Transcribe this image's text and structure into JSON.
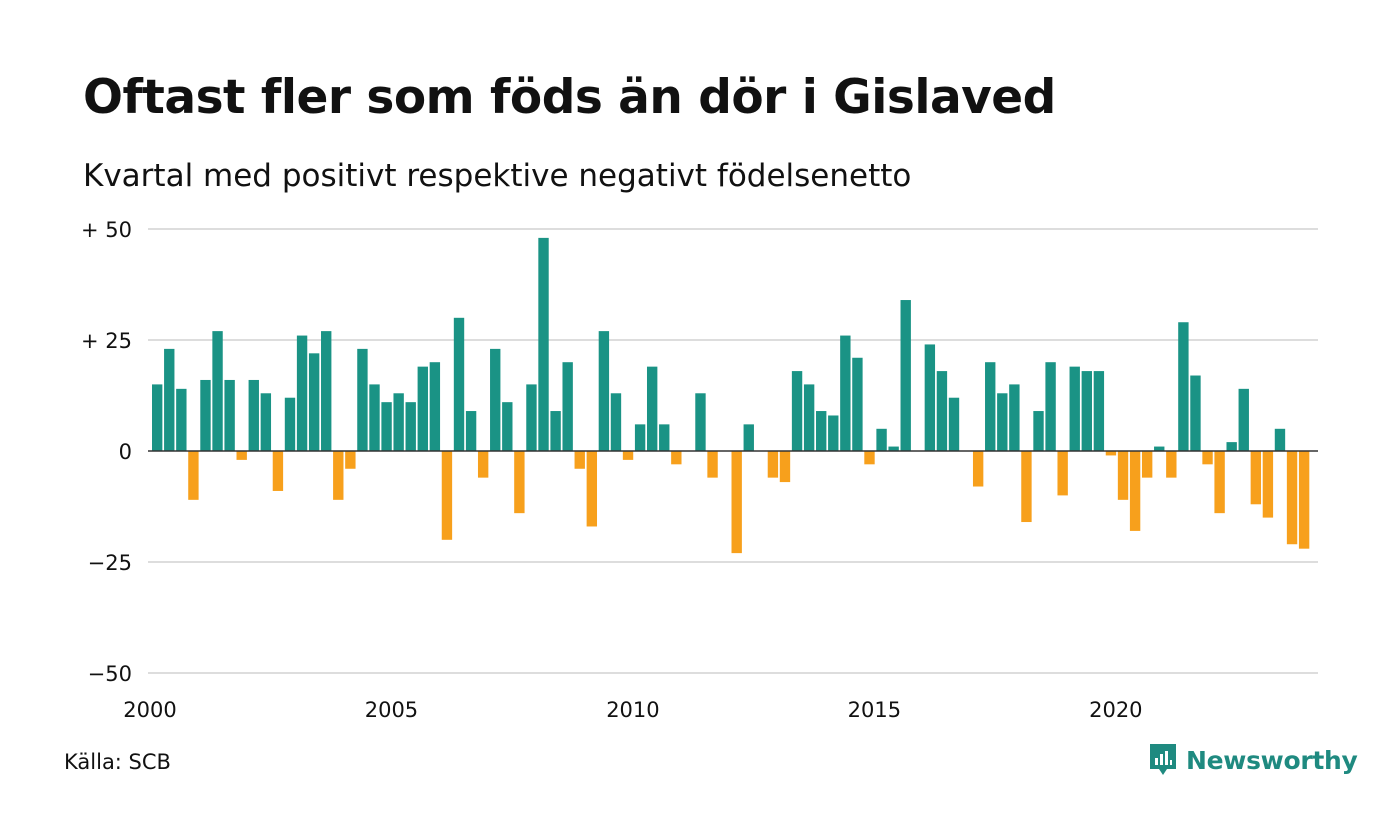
{
  "header": {
    "title": "Oftast fler som föds än dör i Gislaved",
    "subtitle": "Kvartal med positivt respektive negativt födelsenetto"
  },
  "footer": {
    "source": "Källa: SCB",
    "brand": "Newsworthy",
    "brand_icon": "newsworthy-logo-icon"
  },
  "colors": {
    "positive": "#1a9385",
    "negative": "#f7a01c",
    "grid": "#dddddd",
    "zero_line": "#333333",
    "brand": "#1f8a80"
  },
  "chart_data": {
    "type": "bar",
    "title": "Oftast fler som föds än dör i Gislaved",
    "subtitle": "Kvartal med positivt respektive negativt födelsenetto",
    "xlabel": "",
    "ylabel": "",
    "xlim": [
      2000,
      2024
    ],
    "ylim": [
      -50,
      50
    ],
    "y_ticks": [
      {
        "value": 50,
        "label": "+ 50"
      },
      {
        "value": 25,
        "label": "+ 25"
      },
      {
        "value": 0,
        "label": "0"
      },
      {
        "value": -25,
        "label": "−25"
      },
      {
        "value": -50,
        "label": "−50"
      }
    ],
    "x_ticks": [
      {
        "value": 2000,
        "label": "2000"
      },
      {
        "value": 2005,
        "label": "2005"
      },
      {
        "value": 2010,
        "label": "2010"
      },
      {
        "value": 2015,
        "label": "2015"
      },
      {
        "value": 2020,
        "label": "2020"
      }
    ],
    "grid": true,
    "legend": "none",
    "first_quarter": "2000 Q1",
    "values": [
      15,
      23,
      14,
      -11,
      16,
      27,
      16,
      -2,
      16,
      13,
      -9,
      12,
      26,
      22,
      27,
      -11,
      -4,
      23,
      15,
      11,
      13,
      11,
      19,
      20,
      -20,
      30,
      9,
      -6,
      23,
      11,
      -14,
      15,
      48,
      9,
      20,
      -4,
      -17,
      27,
      13,
      -2,
      6,
      19,
      6,
      -3,
      0,
      13,
      -6,
      0,
      -23,
      6,
      0,
      -6,
      -7,
      18,
      15,
      9,
      8,
      26,
      21,
      -3,
      5,
      1,
      34,
      0,
      24,
      18,
      12,
      0,
      -8,
      20,
      13,
      15,
      -16,
      9,
      20,
      -10,
      19,
      18,
      18,
      -1,
      -11,
      -18,
      -6,
      1,
      -6,
      29,
      17,
      -3,
      -14,
      2,
      14,
      -12,
      -15,
      5,
      -21,
      -22
    ]
  }
}
